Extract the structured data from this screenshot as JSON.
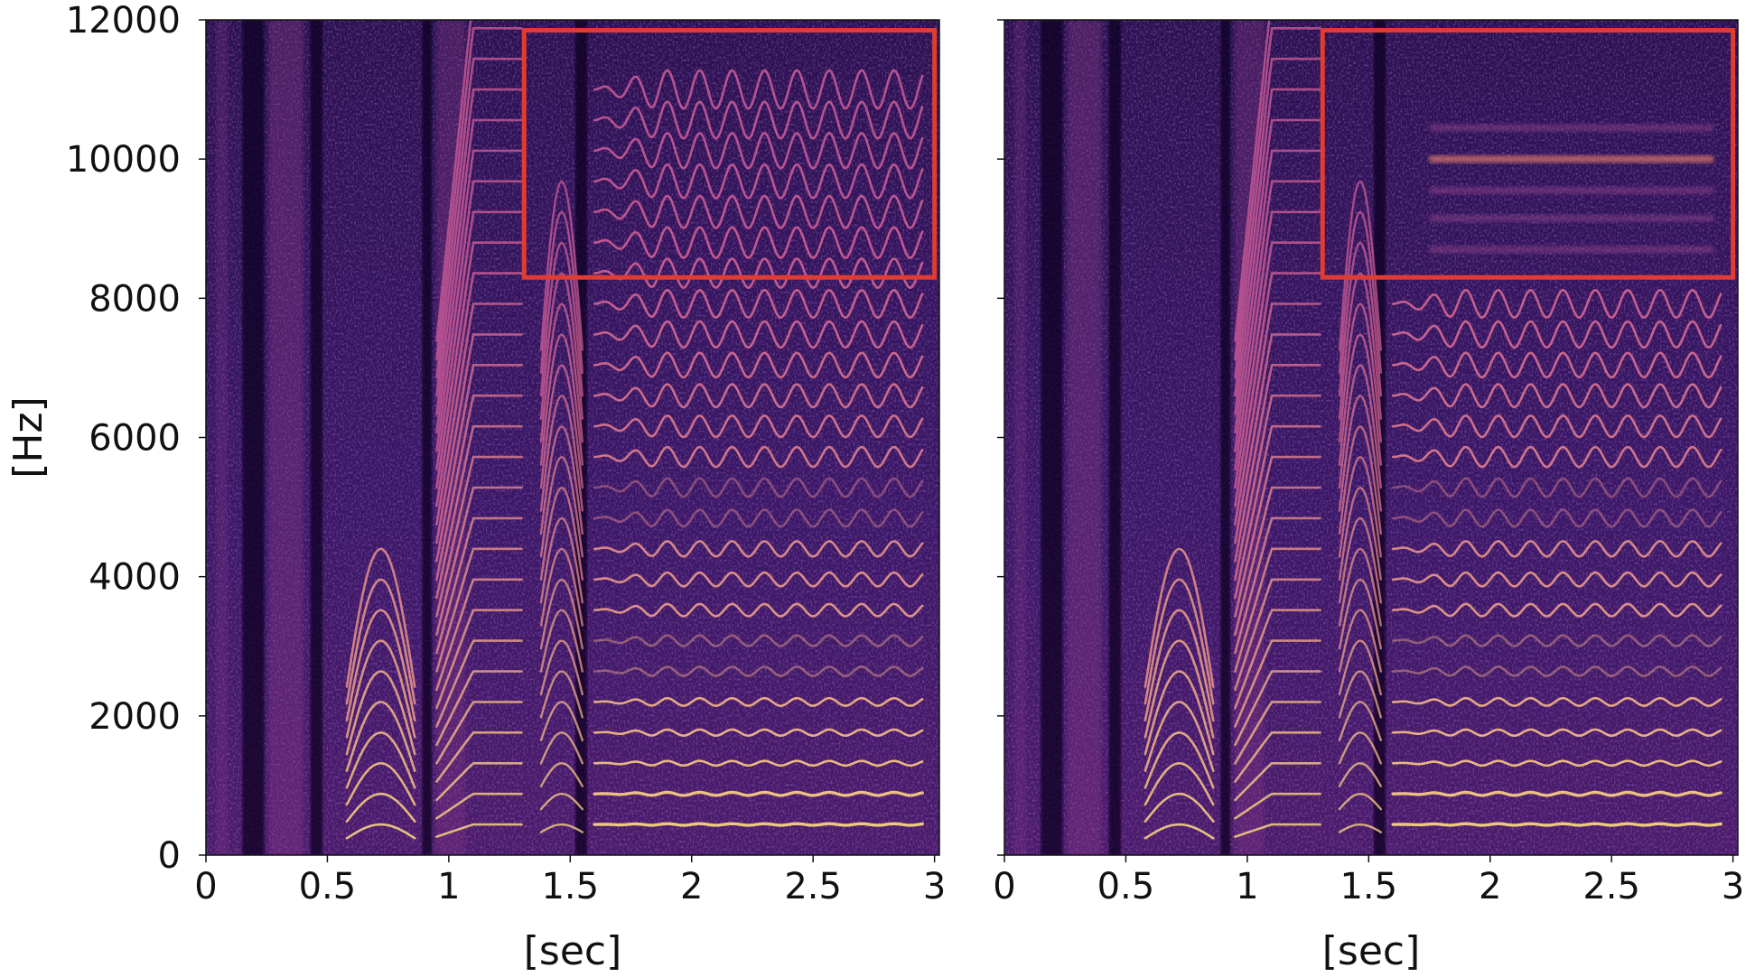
{
  "chart_data": [
    {
      "type": "heatmap",
      "panel": "left",
      "xlabel": "[sec]",
      "ylabel": "[Hz]",
      "xlim": [
        0,
        3.02
      ],
      "ylim": [
        0,
        12000
      ],
      "x_ticks": [
        0,
        0.5,
        1,
        1.5,
        2,
        2.5,
        3
      ],
      "x_tick_labels": [
        "0",
        "0.5",
        "1",
        "1.5",
        "2",
        "2.5",
        "3"
      ],
      "y_ticks": [
        0,
        2000,
        4000,
        6000,
        8000,
        10000,
        12000
      ],
      "y_tick_labels": [
        "0",
        "2000",
        "4000",
        "6000",
        "8000",
        "10000",
        "12000"
      ],
      "colormap": "magma",
      "grid": false,
      "harmonics": {
        "fundamental_hz": 440,
        "vibrato_start_sec": 1.6,
        "vibrato_end_sec": 2.95,
        "vibrato_rate_per_sec": 7.5,
        "vibrato_depth_fraction": 0.025,
        "high_band_visible": true
      },
      "highlight_box": {
        "x0": 1.31,
        "x1": 3.0,
        "y0": 8300,
        "y1": 11850,
        "color": "#e03c31"
      }
    },
    {
      "type": "heatmap",
      "panel": "right",
      "xlabel": "[sec]",
      "ylabel": "",
      "xlim": [
        0,
        3.02
      ],
      "ylim": [
        0,
        12000
      ],
      "x_ticks": [
        0,
        0.5,
        1,
        1.5,
        2,
        2.5,
        3
      ],
      "x_tick_labels": [
        "0",
        "0.5",
        "1",
        "1.5",
        "2",
        "2.5",
        "3"
      ],
      "y_ticks": [
        0,
        2000,
        4000,
        6000,
        8000,
        10000,
        12000
      ],
      "y_tick_labels": [],
      "colormap": "magma",
      "grid": false,
      "harmonics": {
        "fundamental_hz": 440,
        "vibrato_start_sec": 1.6,
        "vibrato_end_sec": 2.95,
        "vibrato_rate_per_sec": 7.5,
        "vibrato_depth_fraction": 0.025,
        "high_band_visible": false
      },
      "highlight_box": {
        "x0": 1.31,
        "x1": 3.0,
        "y0": 8300,
        "y1": 11850,
        "color": "#e03c31"
      }
    }
  ]
}
